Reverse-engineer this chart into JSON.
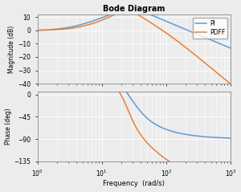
{
  "title": "Bode Diagram",
  "xlabel": "Frequency  (rad/s)",
  "ylabel_mag": "Magnitude (dB)",
  "ylabel_phase": "Phase (deg)",
  "freq_range": [
    1,
    1000
  ],
  "mag_ylim": [
    -40,
    12
  ],
  "mag_yticks": [
    10,
    0,
    -10,
    -20,
    -30,
    -40
  ],
  "phase_ylim": [
    -135,
    5
  ],
  "phase_yticks": [
    0,
    -45,
    -90,
    -135
  ],
  "color_PI": "#5B9BD5",
  "color_PDFF": "#ED7D31",
  "legend_labels": [
    "PI",
    "PDFF"
  ],
  "bg_color": "#ECECEC",
  "grid_color": "#FFFFFF",
  "figsize": [
    3.0,
    2.39
  ],
  "dpi": 100
}
